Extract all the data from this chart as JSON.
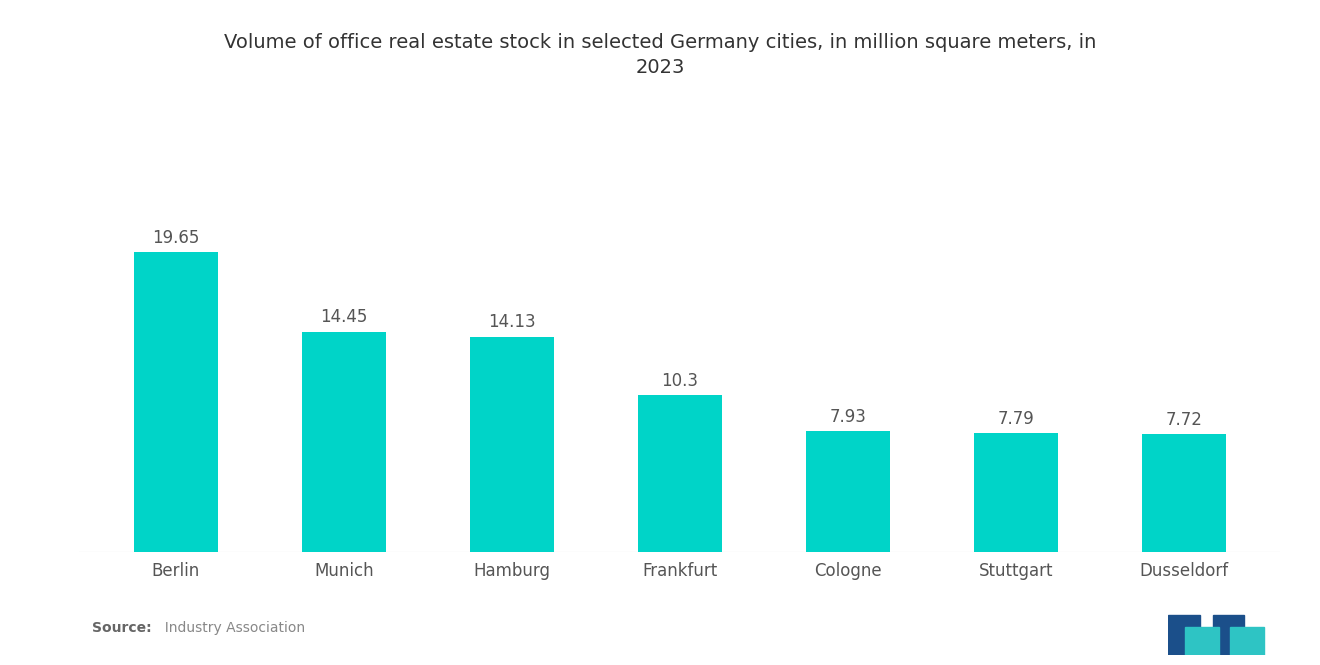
{
  "title_line1": "Volume of office real estate stock in selected Germany cities, in million square meters, in",
  "title_line2": "2023",
  "categories": [
    "Berlin",
    "Munich",
    "Hamburg",
    "Frankfurt",
    "Cologne",
    "Stuttgart",
    "Dusseldorf"
  ],
  "values": [
    19.65,
    14.45,
    14.13,
    10.3,
    7.93,
    7.79,
    7.72
  ],
  "bar_color": "#00D4C8",
  "background_color": "#ffffff",
  "title_fontsize": 14,
  "label_fontsize": 12,
  "value_fontsize": 12,
  "source_bold": "Source:",
  "source_normal": "  Industry Association",
  "ylim": [
    0,
    24
  ],
  "bar_width": 0.5
}
